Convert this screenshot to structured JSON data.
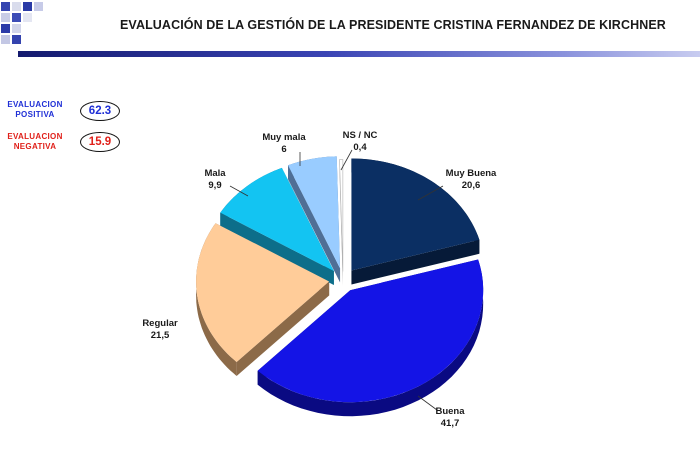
{
  "page": {
    "title": "EVALUACIÓN DE LA GESTIÓN DE LA PRESIDENTE CRISTINA FERNANDEZ DE KIRCHNER"
  },
  "evaluations": {
    "positive": {
      "label_line1": "EVALUACION",
      "label_line2": "POSITIVA",
      "value": "62.3",
      "color": "#1f2fd6"
    },
    "negative": {
      "label_line1": "EVALUACION",
      "label_line2": "NEGATIVA",
      "value": "15.9",
      "color": "#e0201a"
    }
  },
  "colors": {
    "title_bar_start": "#141a6e",
    "title_bar_end": "#c8ccf0",
    "logo": "#2d3a9a"
  },
  "chart_data": {
    "type": "pie",
    "title": "EVALUACIÓN DE LA GESTIÓN DE LA PRESIDENTE CRISTINA FERNANDEZ DE KIRCHNER",
    "slices": [
      {
        "label": "Muy Buena",
        "value_label": "20,6",
        "value": 20.6,
        "color": "#0b2f63",
        "side": "#061a38"
      },
      {
        "label": "Buena",
        "value_label": "41,7",
        "value": 41.7,
        "color": "#1414e6",
        "side": "#0a0a82"
      },
      {
        "label": "Regular",
        "value_label": "21,5",
        "value": 21.5,
        "color": "#ffcc99",
        "side": "#8c6a48"
      },
      {
        "label": "Mala",
        "value_label": "9,9",
        "value": 9.9,
        "color": "#13c4f2",
        "side": "#0d6e8a"
      },
      {
        "label": "Muy mala",
        "value_label": "6",
        "value": 6,
        "color": "#99ccff",
        "side": "#4f6f96"
      },
      {
        "label": "NS / NC",
        "value_label": "0,4",
        "value": 0.4,
        "color": "#ffffff",
        "side": "#aaaaaa"
      }
    ],
    "legend": "none",
    "style": "3d-exploded"
  }
}
